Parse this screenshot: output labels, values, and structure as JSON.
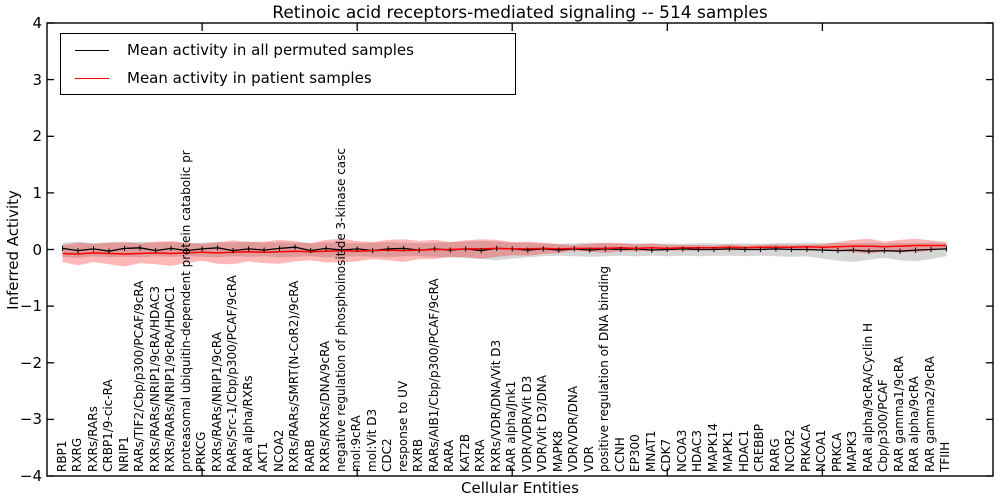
{
  "figure": {
    "title": "Retinoic acid receptors-mediated signaling -- 514 samples",
    "xlabel": "Cellular Entities",
    "ylabel": "Inferred Activity"
  },
  "legend": {
    "items": [
      {
        "label": "Mean activity in all permuted samples",
        "color": "#000000"
      },
      {
        "label": "Mean activity in patient samples",
        "color": "#ff0000"
      }
    ]
  },
  "chart_data": {
    "type": "line",
    "title": "Retinoic acid receptors-mediated signaling -- 514 samples",
    "xlabel": "Cellular Entities",
    "ylabel": "Inferred Activity",
    "ylim": [
      -4,
      4
    ],
    "yticks": [
      4,
      3,
      2,
      1,
      0,
      -1,
      -2,
      -3,
      -4
    ],
    "xticks_axis": [
      10,
      20,
      30,
      40,
      50
    ],
    "grid": false,
    "legend_position": "upper left",
    "categories": [
      "RBP1",
      "RXRG",
      "RXRs/RARs",
      "CRBP1/9-cic-RA",
      "NRIP1",
      "RARs/TIF2/Cbp/p300/PCAF/9cRA",
      "RXRs/RARs/NRIP1/9cRA/HDAC3",
      "RXRs/RARs/NRIP1/9cRA/HDAC1",
      "proteasomal ubiquitin-dependent protein catabolic pr",
      "PRKCG",
      "RXRs/RARs/NRIP1/9cRA",
      "RARs/Src-1/Cbp/p300/PCAF/9cRA",
      "RAR alpha/RXRs",
      "AKT1",
      "NCOA2",
      "RXRs/RARs/SMRT(N-CoR2)/9cRA",
      "RARB",
      "RXRs/RXRs/DNA/9cRA",
      "negative regulation of phosphoinositide 3-kinase casc",
      "mol:9cRA",
      "mol:Vit D3",
      "CDC2",
      "response to UV",
      "RXRB",
      "RARs/AIB1/Cbp/p300/PCAF/9cRA",
      "RARA",
      "KAT2B",
      "RXRA",
      "RXRs/VDR/DNA/Vit D3",
      "RAR alpha/Jnk1",
      "VDR/VDR/Vit D3",
      "VDR/Vit D3/DNA",
      "MAPK8",
      "VDR/VDR/DNA",
      "VDR",
      "positive regulation of DNA binding",
      "CCNH",
      "EP300",
      "MNAT1",
      "CDK7",
      "NCOA3",
      "HDAC3",
      "MAPK14",
      "MAPK1",
      "HDAC1",
      "CREBBP",
      "RARG",
      "NCOR2",
      "PRKACA",
      "NCOA1",
      "PRKCA",
      "MAPK3",
      "RAR alpha/9cRA/Cyclin H",
      "Cbp/p300/PCAF",
      "RAR gamma1/9cRA",
      "RAR alpha/9cRA",
      "RAR gamma2/9cRA",
      "TFIIH"
    ],
    "series": [
      {
        "name": "Mean activity in all permuted samples",
        "color": "#000000",
        "band_color": "rgba(0,0,0,0.16)",
        "values": [
          0.02,
          -0.02,
          0.01,
          -0.03,
          0.02,
          0.03,
          -0.02,
          0.02,
          -0.02,
          0.01,
          0.03,
          -0.02,
          0.01,
          -0.01,
          0.02,
          0.04,
          -0.02,
          0.02,
          -0.01,
          0.01,
          -0.02,
          0.01,
          0.02,
          -0.01,
          0.01,
          -0.01,
          0.01,
          -0.02,
          0.02,
          0.01,
          -0.01,
          0.01,
          -0.01,
          0.01,
          -0.01,
          0.01,
          0.0,
          0.01,
          -0.01,
          0.0,
          0.01,
          0.0,
          0.0,
          0.01,
          0.0,
          0.0,
          0.01,
          0.0,
          0.0,
          -0.01,
          -0.02,
          -0.01,
          -0.03,
          -0.02,
          -0.03,
          -0.01,
          0.0,
          0.01
        ],
        "band_upper": [
          0.12,
          0.14,
          0.11,
          0.13,
          0.12,
          0.14,
          0.12,
          0.13,
          0.11,
          0.12,
          0.13,
          0.12,
          0.14,
          0.12,
          0.13,
          0.12,
          0.11,
          0.13,
          0.12,
          0.11,
          0.12,
          0.13,
          0.12,
          0.11,
          0.12,
          0.13,
          0.14,
          0.15,
          0.14,
          0.12,
          0.12,
          0.11,
          0.1,
          0.11,
          0.12,
          0.11,
          0.1,
          0.11,
          0.1,
          0.11,
          0.1,
          0.11,
          0.11,
          0.1,
          0.11,
          0.1,
          0.11,
          0.12,
          0.11,
          0.12,
          0.12,
          0.11,
          0.12,
          0.11,
          0.12,
          0.11,
          0.12,
          0.11
        ],
        "band_lower": [
          -0.13,
          -0.15,
          -0.12,
          -0.14,
          -0.13,
          -0.14,
          -0.12,
          -0.13,
          -0.12,
          -0.13,
          -0.14,
          -0.12,
          -0.13,
          -0.12,
          -0.14,
          -0.13,
          -0.12,
          -0.14,
          -0.13,
          -0.12,
          -0.13,
          -0.14,
          -0.12,
          -0.12,
          -0.13,
          -0.14,
          -0.15,
          -0.17,
          -0.19,
          -0.16,
          -0.14,
          -0.12,
          -0.11,
          -0.12,
          -0.13,
          -0.12,
          -0.11,
          -0.12,
          -0.11,
          -0.12,
          -0.11,
          -0.12,
          -0.11,
          -0.11,
          -0.12,
          -0.11,
          -0.12,
          -0.13,
          -0.12,
          -0.16,
          -0.2,
          -0.22,
          -0.18,
          -0.15,
          -0.19,
          -0.21,
          -0.17,
          -0.12
        ]
      },
      {
        "name": "Mean activity in patient samples",
        "color": "#ff0000",
        "band_color": "rgba(255,0,0,0.28)",
        "values": [
          -0.07,
          -0.08,
          -0.06,
          -0.07,
          -0.08,
          -0.07,
          -0.06,
          -0.07,
          -0.06,
          -0.05,
          -0.06,
          -0.05,
          -0.04,
          -0.05,
          -0.04,
          -0.03,
          -0.04,
          -0.03,
          -0.02,
          -0.03,
          -0.02,
          -0.01,
          -0.02,
          -0.01,
          0.0,
          0.0,
          0.01,
          0.01,
          0.02,
          0.01,
          0.01,
          0.02,
          0.01,
          0.02,
          0.02,
          0.02,
          0.03,
          0.02,
          0.03,
          0.02,
          0.03,
          0.03,
          0.03,
          0.04,
          0.03,
          0.04,
          0.04,
          0.04,
          0.05,
          0.04,
          0.05,
          0.06,
          0.06,
          0.05,
          0.06,
          0.07,
          0.07,
          0.07
        ],
        "band_upper": [
          0.08,
          0.12,
          0.1,
          0.12,
          0.14,
          0.1,
          0.14,
          0.15,
          0.12,
          0.1,
          0.13,
          0.16,
          0.13,
          0.14,
          0.17,
          0.15,
          0.11,
          0.17,
          0.19,
          0.15,
          0.13,
          0.17,
          0.18,
          0.15,
          0.17,
          0.13,
          0.16,
          0.18,
          0.17,
          0.13,
          0.14,
          0.12,
          0.09,
          0.08,
          0.1,
          0.12,
          0.12,
          0.09,
          0.11,
          0.08,
          0.08,
          0.08,
          0.07,
          0.09,
          0.07,
          0.08,
          0.09,
          0.08,
          0.09,
          0.09,
          0.13,
          0.17,
          0.19,
          0.14,
          0.17,
          0.19,
          0.16,
          0.13
        ],
        "band_lower": [
          -0.22,
          -0.28,
          -0.22,
          -0.26,
          -0.3,
          -0.24,
          -0.26,
          -0.29,
          -0.24,
          -0.2,
          -0.25,
          -0.26,
          -0.21,
          -0.24,
          -0.25,
          -0.21,
          -0.19,
          -0.23,
          -0.23,
          -0.21,
          -0.17,
          -0.19,
          -0.22,
          -0.17,
          -0.17,
          -0.13,
          -0.14,
          -0.16,
          -0.13,
          -0.1,
          -0.11,
          -0.08,
          -0.06,
          -0.02,
          -0.04,
          -0.06,
          -0.03,
          -0.03,
          -0.02,
          -0.02,
          -0.02,
          -0.02,
          -0.01,
          -0.01,
          -0.01,
          0.0,
          -0.01,
          0.0,
          0.01,
          -0.01,
          -0.03,
          -0.05,
          -0.07,
          -0.04,
          -0.05,
          -0.05,
          -0.02,
          0.01
        ]
      }
    ]
  }
}
